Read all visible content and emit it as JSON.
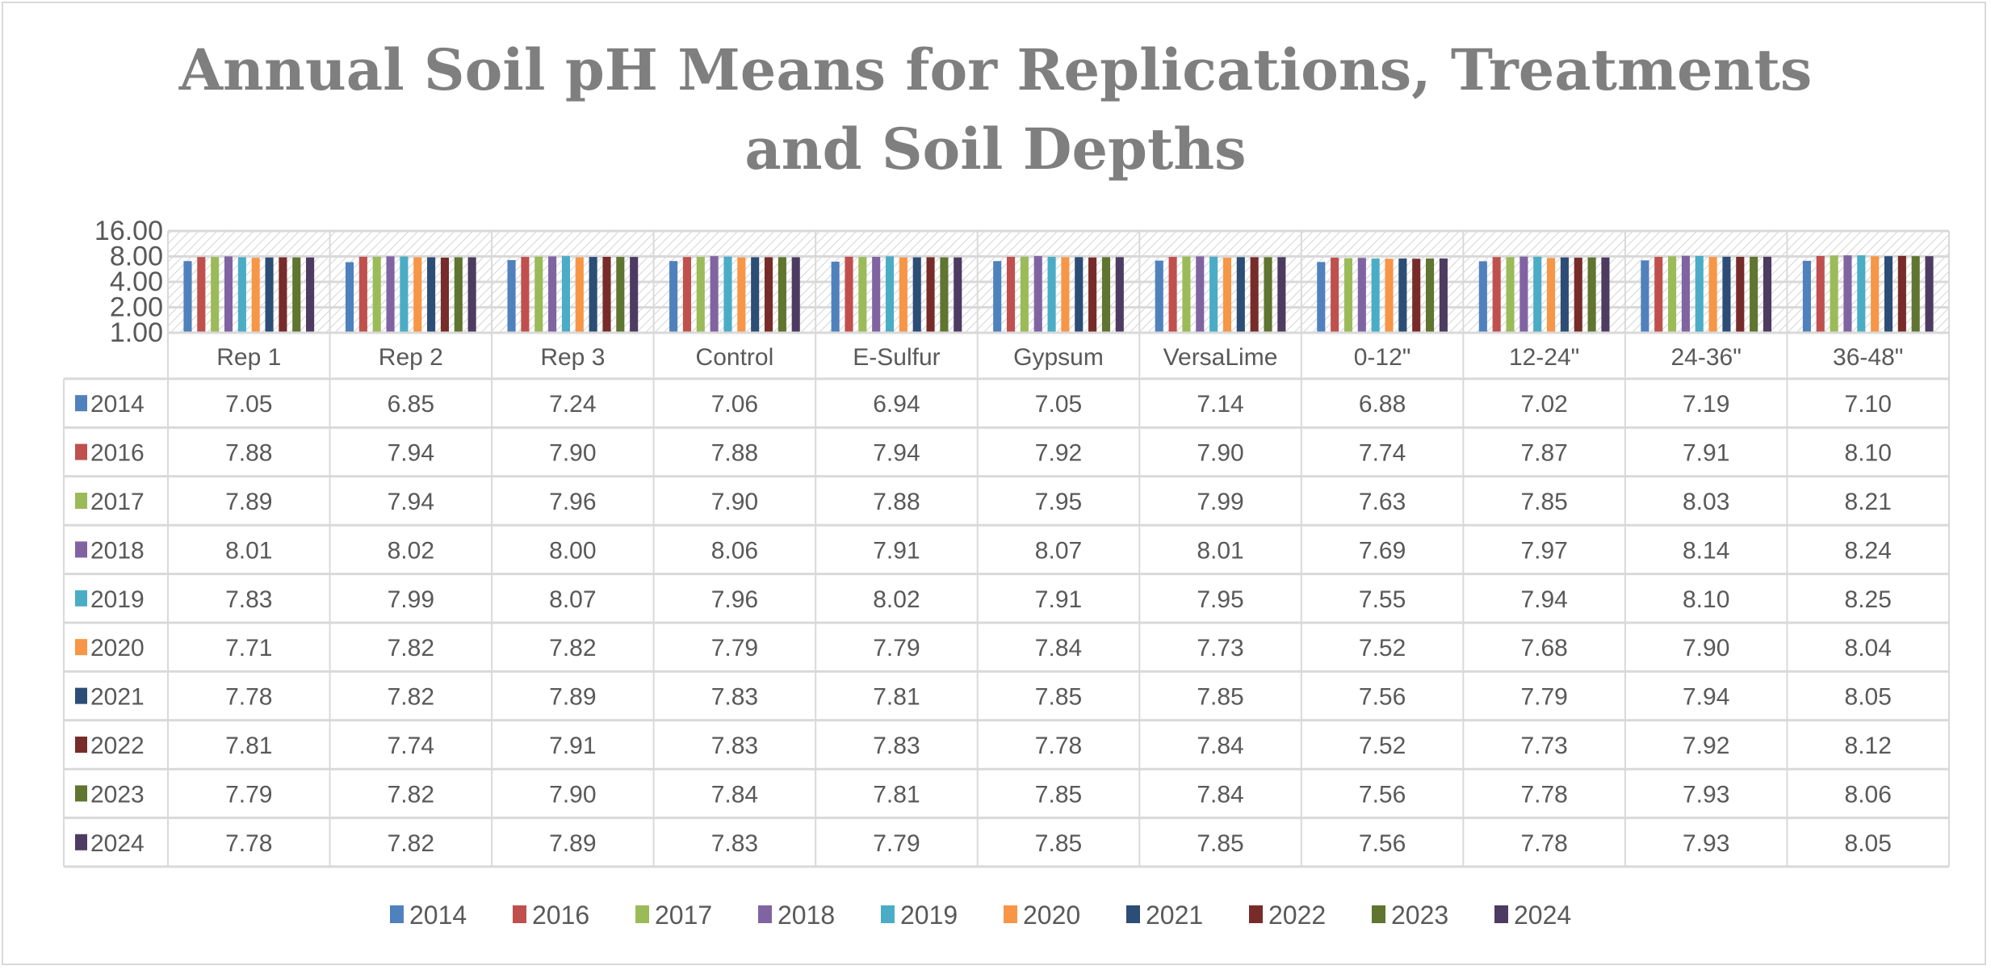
{
  "chart_data": {
    "type": "bar",
    "title": "Annual Soil pH Means for Replications, Treatments and Soil Depths",
    "title_lines": [
      "Annual Soil pH Means for Replications, Treatments",
      "and Soil Depths"
    ],
    "xlabel": "",
    "ylabel": "",
    "yscale": "log2",
    "ylim": [
      1,
      16
    ],
    "yticks": [
      "1.00",
      "2.00",
      "4.00",
      "8.00",
      "16.00"
    ],
    "ytick_values": [
      1,
      2,
      4,
      8,
      16
    ],
    "grid": true,
    "legend_position": "bottom",
    "data_table": true,
    "categories": [
      "Rep 1",
      "Rep 2",
      "Rep 3",
      "Control",
      "E-Sulfur",
      "Gypsum",
      "VersaLime",
      "0-12\"",
      "12-24\"",
      "24-36\"",
      "36-48\""
    ],
    "series": [
      {
        "name": "2014",
        "color": "#4f81bd",
        "values": [
          7.05,
          6.85,
          7.24,
          7.06,
          6.94,
          7.05,
          7.14,
          6.88,
          7.02,
          7.19,
          7.1
        ]
      },
      {
        "name": "2016",
        "color": "#c0504d",
        "values": [
          7.88,
          7.94,
          7.9,
          7.88,
          7.94,
          7.92,
          7.9,
          7.74,
          7.87,
          7.91,
          8.1
        ]
      },
      {
        "name": "2017",
        "color": "#9bbb59",
        "values": [
          7.89,
          7.94,
          7.96,
          7.9,
          7.88,
          7.95,
          7.99,
          7.63,
          7.85,
          8.03,
          8.21
        ]
      },
      {
        "name": "2018",
        "color": "#8064a2",
        "values": [
          8.01,
          8.02,
          8.0,
          8.06,
          7.91,
          8.07,
          8.01,
          7.69,
          7.97,
          8.14,
          8.24
        ]
      },
      {
        "name": "2019",
        "color": "#4bacc6",
        "values": [
          7.83,
          7.99,
          8.07,
          7.96,
          8.02,
          7.91,
          7.95,
          7.55,
          7.94,
          8.1,
          8.25
        ]
      },
      {
        "name": "2020",
        "color": "#f79646",
        "values": [
          7.71,
          7.82,
          7.82,
          7.79,
          7.79,
          7.84,
          7.73,
          7.52,
          7.68,
          7.9,
          8.04
        ]
      },
      {
        "name": "2021",
        "color": "#2c4d75",
        "values": [
          7.78,
          7.82,
          7.89,
          7.83,
          7.81,
          7.85,
          7.85,
          7.56,
          7.79,
          7.94,
          8.05
        ]
      },
      {
        "name": "2022",
        "color": "#772c2a",
        "values": [
          7.81,
          7.74,
          7.91,
          7.83,
          7.83,
          7.78,
          7.84,
          7.52,
          7.73,
          7.92,
          8.12
        ]
      },
      {
        "name": "2023",
        "color": "#5f7530",
        "values": [
          7.79,
          7.82,
          7.9,
          7.84,
          7.81,
          7.85,
          7.84,
          7.56,
          7.78,
          7.93,
          8.06
        ]
      },
      {
        "name": "2024",
        "color": "#4d3b62",
        "values": [
          7.78,
          7.82,
          7.89,
          7.83,
          7.79,
          7.85,
          7.85,
          7.56,
          7.78,
          7.93,
          8.05
        ]
      }
    ]
  }
}
